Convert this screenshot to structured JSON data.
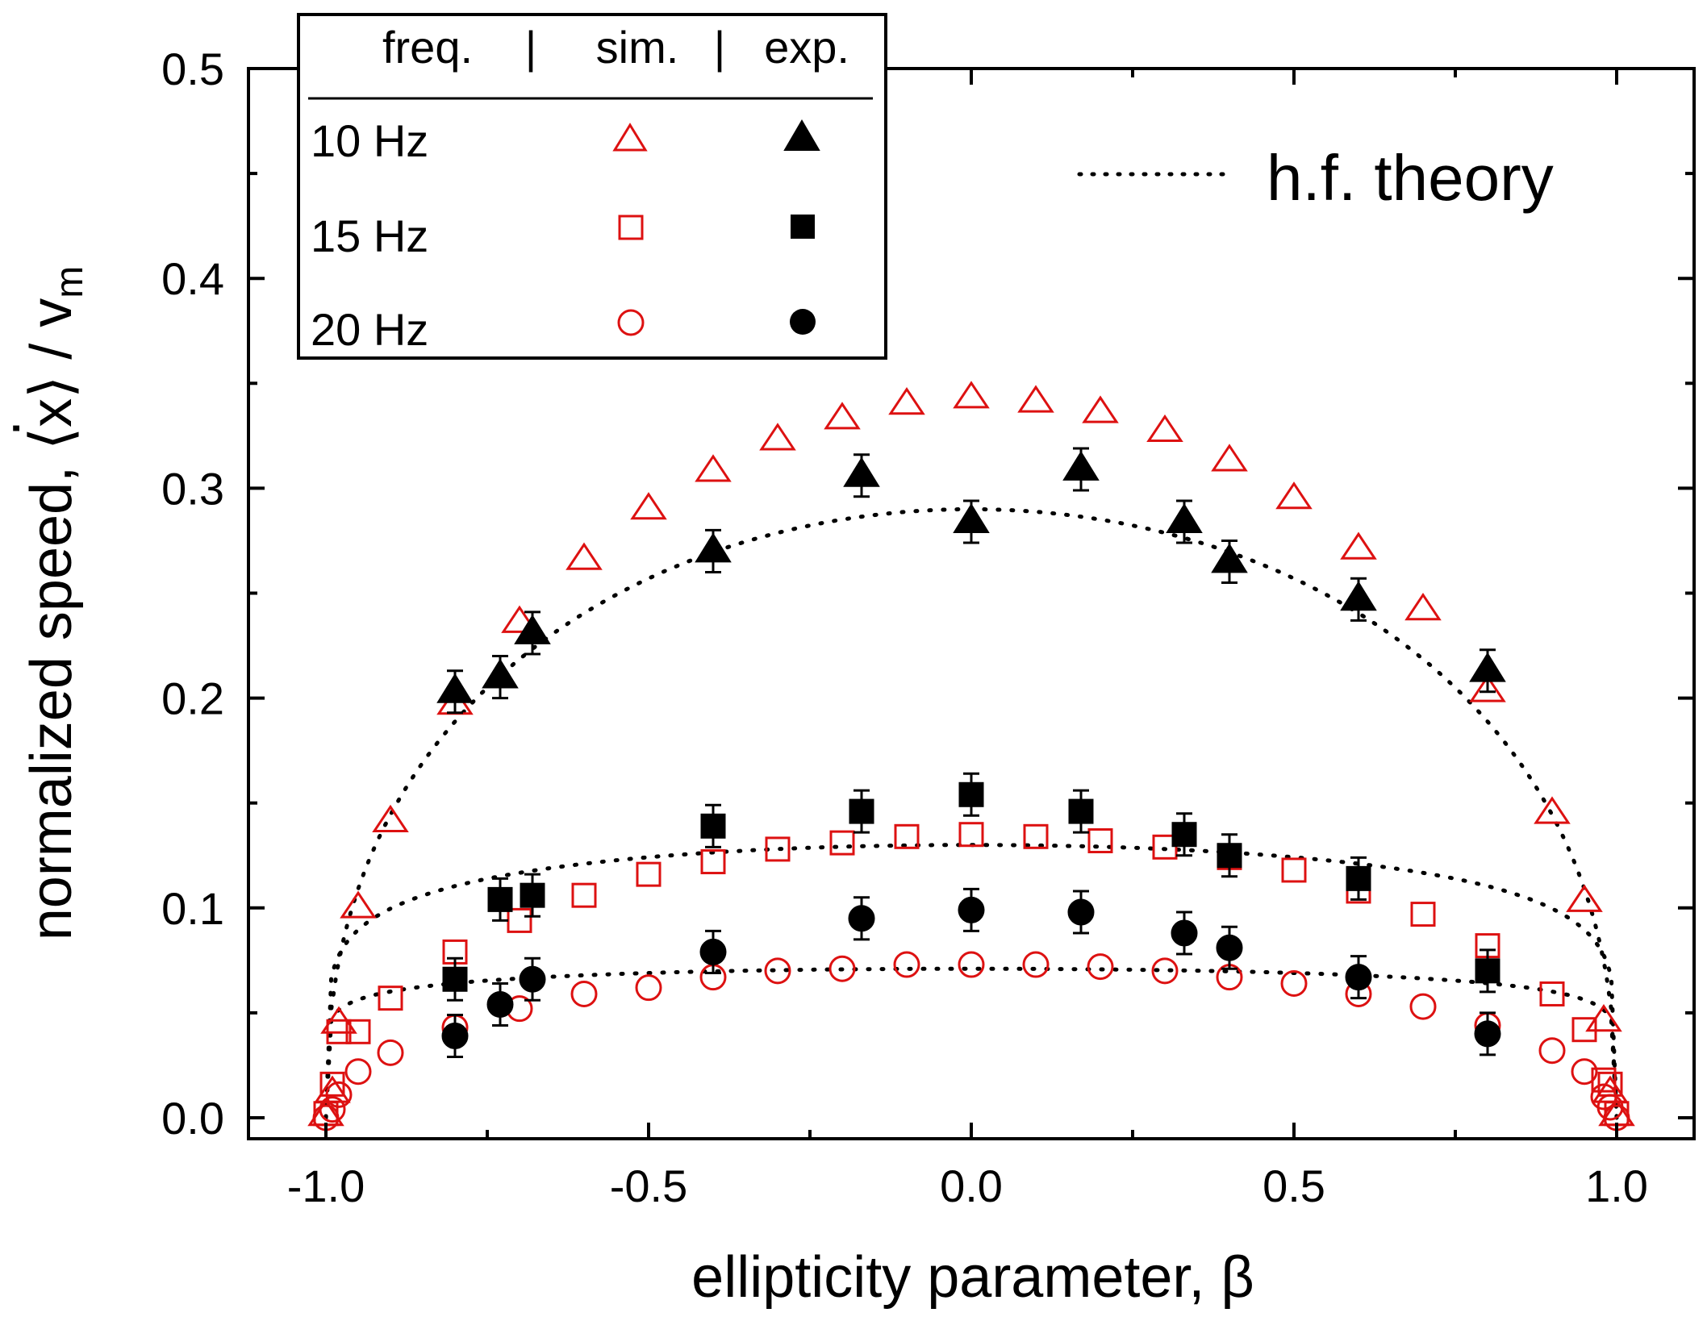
{
  "chart_data": {
    "type": "scatter",
    "xlabel": "ellipticity parameter, β",
    "ylabel_main": "normalized speed, ⟨x⟩ / v",
    "ylabel_dot": "·",
    "ylabel_sub": "m",
    "xlim": [
      -1.12,
      1.12
    ],
    "ylim": [
      -0.01,
      0.5
    ],
    "x_ticks": [
      -1.0,
      -0.5,
      0.0,
      0.5,
      1.0
    ],
    "x_tick_labels": [
      "-1.0",
      "-0.5",
      "0.0",
      "0.5",
      "1.0"
    ],
    "y_ticks": [
      0.0,
      0.1,
      0.2,
      0.3,
      0.4,
      0.5
    ],
    "y_tick_labels": [
      "0.0",
      "0.1",
      "0.2",
      "0.3",
      "0.4",
      "0.5"
    ],
    "legend": {
      "header_freq": "freq.",
      "header_sep1": "|",
      "header_sim": "sim.",
      "header_sep2": "|",
      "header_exp": "exp.",
      "rows": [
        "10 Hz",
        "15 Hz",
        "20 Hz"
      ]
    },
    "theory_label": "h.f. theory",
    "colors": {
      "sim": "#dd1111",
      "exp": "#000000"
    },
    "sim_x": [
      -1.0,
      -0.99,
      -0.98,
      -0.95,
      -0.9,
      -0.8,
      -0.7,
      -0.6,
      -0.5,
      -0.4,
      -0.3,
      -0.2,
      -0.1,
      0.0,
      0.1,
      0.2,
      0.3,
      0.4,
      0.5,
      0.6,
      0.7,
      0.8,
      0.9,
      0.95,
      0.98,
      0.99,
      1.0
    ],
    "series": [
      {
        "name": "10 Hz sim.",
        "kind": "sim",
        "marker": "triangle",
        "values": [
          0.001,
          0.012,
          0.045,
          0.1,
          0.141,
          0.197,
          0.236,
          0.266,
          0.29,
          0.308,
          0.323,
          0.333,
          0.34,
          0.343,
          0.341,
          0.336,
          0.327,
          0.313,
          0.295,
          0.271,
          0.242,
          0.203,
          0.145,
          0.103,
          0.046,
          0.012,
          0.001
        ]
      },
      {
        "name": "15 Hz sim.",
        "kind": "sim",
        "marker": "square",
        "values": [
          0.002,
          0.016,
          0.041,
          0.041,
          0.057,
          0.079,
          0.094,
          0.106,
          0.116,
          0.122,
          0.128,
          0.131,
          0.134,
          0.135,
          0.134,
          0.132,
          0.129,
          0.124,
          0.118,
          0.108,
          0.097,
          0.082,
          0.059,
          0.042,
          0.018,
          0.016,
          0.002
        ]
      },
      {
        "name": "20 Hz sim.",
        "kind": "sim",
        "marker": "circle",
        "values": [
          0.0,
          0.004,
          0.011,
          0.022,
          0.031,
          0.043,
          0.052,
          0.059,
          0.062,
          0.067,
          0.07,
          0.071,
          0.073,
          0.073,
          0.073,
          0.072,
          0.07,
          0.067,
          0.064,
          0.059,
          0.053,
          0.044,
          0.032,
          0.022,
          0.01,
          0.005,
          0.0
        ]
      },
      {
        "name": "10 Hz exp.",
        "kind": "exp",
        "marker": "triangle",
        "x": [
          -0.8,
          -0.73,
          -0.68,
          -0.4,
          -0.17,
          0.0,
          0.17,
          0.33,
          0.4,
          0.6,
          0.8
        ],
        "values": [
          0.203,
          0.21,
          0.231,
          0.27,
          0.306,
          0.284,
          0.309,
          0.284,
          0.265,
          0.247,
          0.213
        ],
        "error": 0.01
      },
      {
        "name": "15 Hz exp.",
        "kind": "exp",
        "marker": "square",
        "x": [
          -0.8,
          -0.73,
          -0.68,
          -0.4,
          -0.17,
          0.0,
          0.17,
          0.33,
          0.4,
          0.6,
          0.8
        ],
        "values": [
          0.066,
          0.104,
          0.106,
          0.139,
          0.146,
          0.154,
          0.146,
          0.135,
          0.125,
          0.114,
          0.07
        ],
        "error": 0.01
      },
      {
        "name": "20 Hz exp.",
        "kind": "exp",
        "marker": "circle",
        "x": [
          -0.8,
          -0.73,
          -0.68,
          -0.4,
          -0.17,
          0.0,
          0.17,
          0.33,
          0.4,
          0.6,
          0.8
        ],
        "values": [
          0.039,
          0.054,
          0.066,
          0.079,
          0.095,
          0.099,
          0.098,
          0.088,
          0.081,
          0.067,
          0.04
        ],
        "error": 0.01
      }
    ],
    "theory_curves": [
      {
        "name": "10 Hz theory",
        "peak": 0.29,
        "alpha": 0.42
      },
      {
        "name": "15 Hz theory",
        "peak": 0.13,
        "alpha": 0.16
      },
      {
        "name": "20 Hz theory",
        "peak": 0.071,
        "alpha": 0.1
      }
    ]
  }
}
